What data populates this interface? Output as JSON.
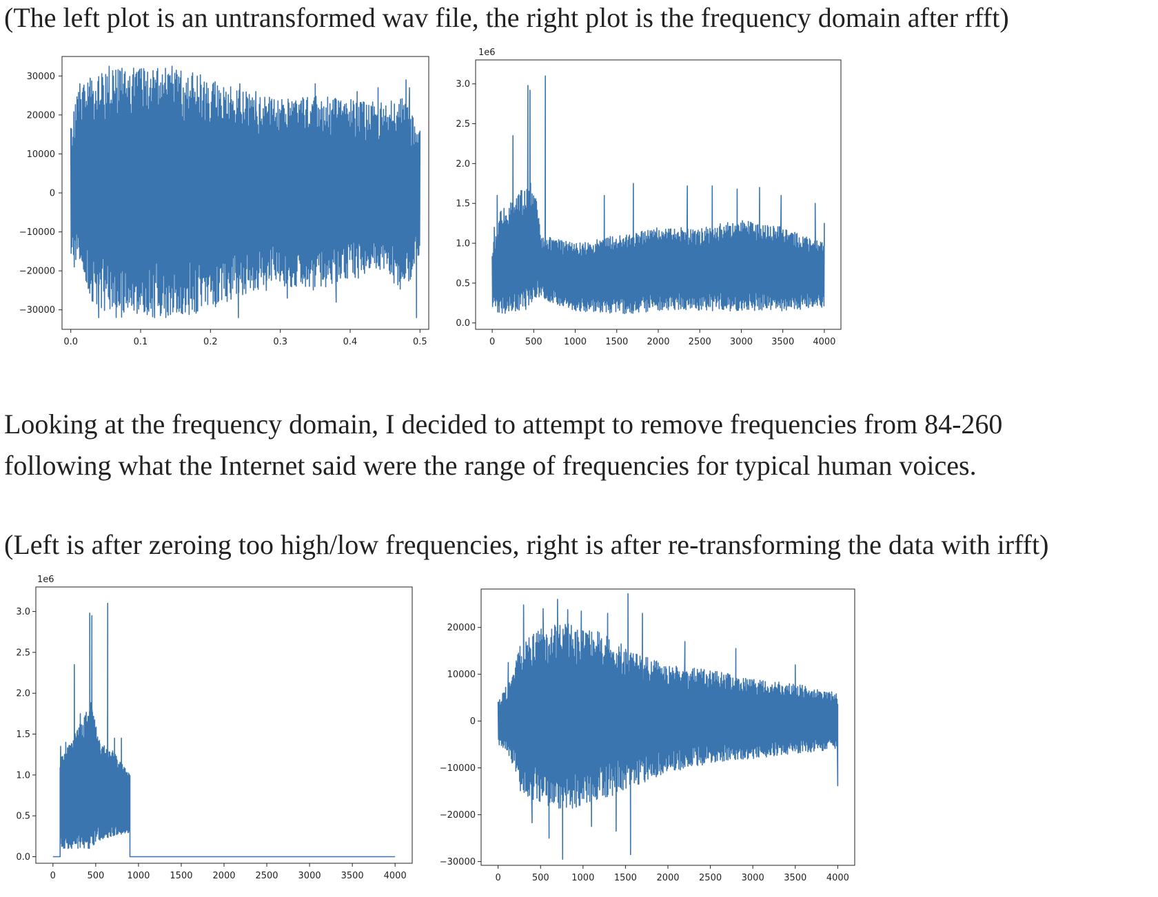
{
  "captions": {
    "top": "(The left plot is an untransformed wav file, the right plot is the frequency domain after rfft)",
    "middle_line1": "Looking at the frequency domain, I decided to attempt to remove frequencies from 84-260",
    "middle_line2": "following what the Internet said were the range of frequencies for typical human voices.",
    "bottom": "(Left is after zeroing too high/low frequencies, right is after re-transforming the data with irfft)"
  },
  "colors": {
    "line": "#3a75b0",
    "frame": "#222222",
    "background": "#ffffff"
  },
  "chart_data": [
    {
      "id": "wav",
      "type": "line",
      "title": "",
      "xlabel": "",
      "ylabel": "",
      "xlim": [
        -0.0125,
        0.5125
      ],
      "ylim": [
        -35000,
        35000
      ],
      "xticks": [
        0.0,
        0.1,
        0.2,
        0.3,
        0.4,
        0.5
      ],
      "xtick_labels": [
        "0.0",
        "0.1",
        "0.2",
        "0.3",
        "0.4",
        "0.5"
      ],
      "yticks": [
        -30000,
        -20000,
        -10000,
        0,
        10000,
        20000,
        30000
      ],
      "ytick_labels": [
        "−30000",
        "−20000",
        "−10000",
        "0",
        "10000",
        "20000",
        "30000"
      ],
      "offset_label": "",
      "grid": false,
      "x_range": [
        0.0,
        0.5
      ],
      "envelope": [
        [
          0.0,
          17000,
          -17000
        ],
        [
          0.01,
          26000,
          -18000
        ],
        [
          0.03,
          31000,
          -28000
        ],
        [
          0.06,
          32000,
          -32000
        ],
        [
          0.1,
          32000,
          -32000
        ],
        [
          0.15,
          32000,
          -32000
        ],
        [
          0.18,
          31000,
          -31000
        ],
        [
          0.2,
          29000,
          -30000
        ],
        [
          0.25,
          26000,
          -26000
        ],
        [
          0.3,
          24000,
          -24000
        ],
        [
          0.35,
          25000,
          -25000
        ],
        [
          0.4,
          24000,
          -22000
        ],
        [
          0.45,
          23000,
          -22000
        ],
        [
          0.48,
          25000,
          -26000
        ],
        [
          0.5,
          16000,
          -15000
        ]
      ],
      "spikes": [
        [
          0.005,
          -19000
        ],
        [
          0.013,
          28000
        ],
        [
          0.04,
          -32000
        ],
        [
          0.055,
          32500
        ],
        [
          0.09,
          32000
        ],
        [
          0.12,
          -32000
        ],
        [
          0.145,
          32500
        ],
        [
          0.16,
          -31000
        ],
        [
          0.24,
          -32000
        ],
        [
          0.242,
          28000
        ],
        [
          0.265,
          26000
        ],
        [
          0.28,
          -25000
        ],
        [
          0.31,
          -27000
        ],
        [
          0.35,
          28000
        ],
        [
          0.38,
          -28000
        ],
        [
          0.41,
          26000
        ],
        [
          0.44,
          27000
        ],
        [
          0.48,
          29000
        ],
        [
          0.485,
          27000
        ],
        [
          0.495,
          -32000
        ],
        [
          0.498,
          15000
        ]
      ],
      "series": [
        {
          "name": "",
          "type": "dense-signal",
          "values_description": ""
        }
      ]
    },
    {
      "id": "rfft",
      "type": "line",
      "title": "",
      "xlabel": "",
      "ylabel": "",
      "xlim": [
        -200,
        4200
      ],
      "ylim": [
        -0.08,
        3.3
      ],
      "xticks": [
        0,
        500,
        1000,
        1500,
        2000,
        2500,
        3000,
        3500,
        4000
      ],
      "xtick_labels": [
        "0",
        "500",
        "1000",
        "1500",
        "2000",
        "2500",
        "3000",
        "3500",
        "4000"
      ],
      "yticks": [
        0.0,
        0.5,
        1.0,
        1.5,
        2.0,
        2.5,
        3.0
      ],
      "ytick_labels": [
        "0.0",
        "0.5",
        "1.0",
        "1.5",
        "2.0",
        "2.5",
        "3.0"
      ],
      "offset_label": "1e6",
      "grid": false,
      "x_range": [
        0,
        4000
      ],
      "envelope": [
        [
          0,
          1.0,
          0.2
        ],
        [
          100,
          1.4,
          0.1
        ],
        [
          300,
          1.6,
          0.15
        ],
        [
          450,
          1.8,
          0.15
        ],
        [
          550,
          1.5,
          0.3
        ],
        [
          600,
          1.1,
          0.3
        ],
        [
          1000,
          1.0,
          0.15
        ],
        [
          1500,
          1.1,
          0.1
        ],
        [
          2000,
          1.2,
          0.15
        ],
        [
          2500,
          1.2,
          0.15
        ],
        [
          3000,
          1.3,
          0.15
        ],
        [
          3500,
          1.2,
          0.15
        ],
        [
          4000,
          1.0,
          0.2
        ]
      ],
      "spikes": [
        [
          25,
          1.2
        ],
        [
          60,
          1.6
        ],
        [
          250,
          2.35
        ],
        [
          430,
          2.98
        ],
        [
          455,
          2.92
        ],
        [
          640,
          3.1
        ],
        [
          1350,
          1.6
        ],
        [
          1700,
          1.75
        ],
        [
          2350,
          1.72
        ],
        [
          2650,
          1.72
        ],
        [
          2950,
          1.68
        ],
        [
          3220,
          1.7
        ],
        [
          3480,
          1.6
        ],
        [
          3890,
          1.5
        ],
        [
          4000,
          1.25
        ]
      ],
      "series": [
        {
          "name": "",
          "type": "dense-signal",
          "values_description": ""
        }
      ]
    },
    {
      "id": "filtered",
      "type": "line",
      "title": "",
      "xlabel": "",
      "ylabel": "",
      "xlim": [
        -200,
        4200
      ],
      "ylim": [
        -0.08,
        3.3
      ],
      "xticks": [
        0,
        500,
        1000,
        1500,
        2000,
        2500,
        3000,
        3500,
        4000
      ],
      "xtick_labels": [
        "0",
        "500",
        "1000",
        "1500",
        "2000",
        "2500",
        "3000",
        "3500",
        "4000"
      ],
      "yticks": [
        0.0,
        0.5,
        1.0,
        1.5,
        2.0,
        2.5,
        3.0
      ],
      "ytick_labels": [
        "0.0",
        "0.5",
        "1.0",
        "1.5",
        "2.0",
        "2.5",
        "3.0"
      ],
      "offset_label": "1e6",
      "grid": false,
      "x_range": [
        0,
        4000
      ],
      "band": [
        84,
        900
      ],
      "envelope": [
        [
          84,
          1.2,
          0.1
        ],
        [
          200,
          1.4,
          0.1
        ],
        [
          300,
          1.6,
          0.1
        ],
        [
          450,
          1.9,
          0.1
        ],
        [
          550,
          1.4,
          0.2
        ],
        [
          700,
          1.3,
          0.25
        ],
        [
          900,
          1.0,
          0.3
        ]
      ],
      "spikes": [
        [
          90,
          1.35
        ],
        [
          150,
          1.4
        ],
        [
          250,
          2.35
        ],
        [
          320,
          1.75
        ],
        [
          430,
          2.98
        ],
        [
          455,
          2.95
        ],
        [
          640,
          3.1
        ],
        [
          720,
          1.45
        ],
        [
          800,
          1.45
        ],
        [
          900,
          0.9
        ]
      ],
      "series": [
        {
          "name": "",
          "type": "dense-signal",
          "values_description": ""
        }
      ]
    },
    {
      "id": "irfft",
      "type": "line",
      "title": "",
      "xlabel": "",
      "ylabel": "",
      "xlim": [
        -200,
        4200
      ],
      "ylim": [
        -30800,
        28200
      ],
      "xticks": [
        0,
        500,
        1000,
        1500,
        2000,
        2500,
        3000,
        3500,
        4000
      ],
      "xtick_labels": [
        "0",
        "500",
        "1000",
        "1500",
        "2000",
        "2500",
        "3000",
        "3500",
        "4000"
      ],
      "yticks": [
        -30000,
        -20000,
        -10000,
        0,
        10000,
        20000
      ],
      "ytick_labels": [
        "−30000",
        "−20000",
        "−10000",
        "0",
        "10000",
        "20000"
      ],
      "offset_label": "",
      "grid": false,
      "x_range": [
        0,
        4000
      ],
      "envelope": [
        [
          0,
          5000,
          -5000
        ],
        [
          150,
          9000,
          -8000
        ],
        [
          250,
          16000,
          -15000
        ],
        [
          500,
          20000,
          -18000
        ],
        [
          800,
          21000,
          -19000
        ],
        [
          1200,
          19000,
          -17000
        ],
        [
          1600,
          15000,
          -14000
        ],
        [
          2000,
          12000,
          -11000
        ],
        [
          2500,
          11000,
          -9000
        ],
        [
          3000,
          9000,
          -8000
        ],
        [
          3500,
          8000,
          -7000
        ],
        [
          4000,
          6000,
          -6000
        ]
      ],
      "spikes": [
        [
          120,
          12500
        ],
        [
          300,
          24800
        ],
        [
          400,
          -21700
        ],
        [
          530,
          24000
        ],
        [
          600,
          -25000
        ],
        [
          700,
          26000
        ],
        [
          760,
          -29500
        ],
        [
          820,
          23800
        ],
        [
          980,
          23500
        ],
        [
          1100,
          -22500
        ],
        [
          1290,
          23000
        ],
        [
          1390,
          -23500
        ],
        [
          1530,
          27200
        ],
        [
          1560,
          -28500
        ],
        [
          1700,
          23000
        ],
        [
          2200,
          17000
        ],
        [
          2800,
          15500
        ],
        [
          3500,
          12000
        ],
        [
          4000,
          -13800
        ]
      ],
      "series": [
        {
          "name": "",
          "type": "dense-signal",
          "values_description": ""
        }
      ]
    }
  ]
}
